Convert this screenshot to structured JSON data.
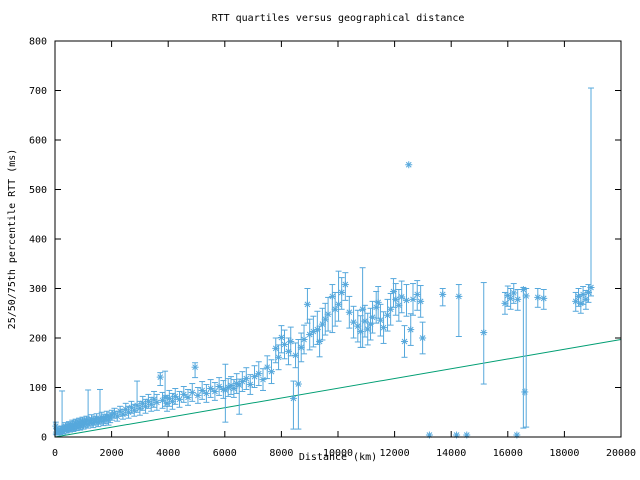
{
  "chart_data": {
    "type": "scatter",
    "title": "RTT quartiles versus geographical distance",
    "xlabel": "Distance (km)",
    "ylabel": "25/50/75th percentile RTT (ms)",
    "xlim": [
      0,
      20000
    ],
    "ylim": [
      0,
      800
    ],
    "x_ticks": [
      0,
      2000,
      4000,
      6000,
      8000,
      10000,
      12000,
      14000,
      16000,
      18000,
      20000
    ],
    "y_ticks": [
      0,
      100,
      200,
      300,
      400,
      500,
      600,
      700,
      800
    ],
    "grid": false,
    "legend": false,
    "colors": {
      "points": "#56a8dc",
      "reference_line": "#009e73",
      "axis": "#000000",
      "background": "#ffffff"
    },
    "series": [
      {
        "name": "rtt-quartiles",
        "style": "yerrorbars",
        "marker": "asterisk",
        "color": "#56a8dc",
        "points_format": [
          "distance_km",
          "median_ms",
          "q25_ms",
          "q75_ms"
        ],
        "points": [
          [
            30,
            22,
            6,
            30
          ],
          [
            60,
            10,
            4,
            16
          ],
          [
            100,
            13,
            7,
            18
          ],
          [
            140,
            16,
            10,
            22
          ],
          [
            180,
            9,
            5,
            14
          ],
          [
            220,
            15,
            9,
            21
          ],
          [
            250,
            18,
            8,
            93
          ],
          [
            290,
            12,
            6,
            18
          ],
          [
            330,
            17,
            11,
            24
          ],
          [
            370,
            22,
            14,
            29
          ],
          [
            410,
            14,
            8,
            20
          ],
          [
            450,
            19,
            12,
            26
          ],
          [
            490,
            24,
            16,
            31
          ],
          [
            530,
            16,
            10,
            23
          ],
          [
            570,
            21,
            13,
            28
          ],
          [
            610,
            26,
            18,
            34
          ],
          [
            650,
            18,
            11,
            25
          ],
          [
            690,
            23,
            15,
            31
          ],
          [
            730,
            28,
            20,
            36
          ],
          [
            770,
            20,
            13,
            27
          ],
          [
            810,
            25,
            17,
            33
          ],
          [
            850,
            30,
            22,
            38
          ],
          [
            890,
            22,
            14,
            30
          ],
          [
            930,
            27,
            19,
            35
          ],
          [
            970,
            32,
            24,
            40
          ],
          [
            1010,
            24,
            16,
            32
          ],
          [
            1060,
            29,
            20,
            37
          ],
          [
            1110,
            34,
            25,
            42
          ],
          [
            1170,
            26,
            18,
            95
          ],
          [
            1230,
            31,
            22,
            39
          ],
          [
            1290,
            36,
            27,
            45
          ],
          [
            1350,
            28,
            19,
            37
          ],
          [
            1410,
            33,
            24,
            42
          ],
          [
            1470,
            38,
            29,
            47
          ],
          [
            1530,
            30,
            21,
            39
          ],
          [
            1590,
            35,
            26,
            96
          ],
          [
            1650,
            40,
            30,
            50
          ],
          [
            1710,
            32,
            23,
            41
          ],
          [
            1770,
            37,
            27,
            46
          ],
          [
            1830,
            42,
            32,
            52
          ],
          [
            1890,
            34,
            24,
            44
          ],
          [
            1950,
            39,
            29,
            49
          ],
          [
            2010,
            44,
            34,
            54
          ],
          [
            2100,
            48,
            38,
            58
          ],
          [
            2200,
            42,
            32,
            52
          ],
          [
            2300,
            52,
            42,
            62
          ],
          [
            2400,
            46,
            36,
            56
          ],
          [
            2500,
            56,
            44,
            68
          ],
          [
            2600,
            50,
            38,
            62
          ],
          [
            2700,
            60,
            48,
            72
          ],
          [
            2800,
            54,
            42,
            66
          ],
          [
            2900,
            64,
            50,
            113
          ],
          [
            3000,
            58,
            44,
            72
          ],
          [
            3100,
            68,
            54,
            82
          ],
          [
            3200,
            62,
            48,
            76
          ],
          [
            3300,
            72,
            58,
            86
          ],
          [
            3400,
            66,
            52,
            80
          ],
          [
            3500,
            76,
            60,
            92
          ],
          [
            3600,
            70,
            54,
            86
          ],
          [
            3720,
            121,
            104,
            130
          ],
          [
            3800,
            74,
            58,
            90
          ],
          [
            3890,
            80,
            62,
            133
          ],
          [
            3960,
            68,
            52,
            84
          ],
          [
            4040,
            78,
            62,
            94
          ],
          [
            4150,
            72,
            56,
            88
          ],
          [
            4250,
            82,
            66,
            98
          ],
          [
            4400,
            76,
            60,
            92
          ],
          [
            4550,
            86,
            70,
            102
          ],
          [
            4700,
            80,
            64,
            96
          ],
          [
            4850,
            90,
            72,
            108
          ],
          [
            4950,
            141,
            120,
            150
          ],
          [
            5050,
            84,
            68,
            100
          ],
          [
            5200,
            94,
            76,
            112
          ],
          [
            5350,
            88,
            70,
            106
          ],
          [
            5500,
            98,
            80,
            116
          ],
          [
            5650,
            92,
            74,
            110
          ],
          [
            5800,
            102,
            84,
            120
          ],
          [
            5950,
            96,
            78,
            114
          ],
          [
            6020,
            95,
            30,
            147
          ],
          [
            6120,
            100,
            82,
            118
          ],
          [
            6220,
            104,
            86,
            122
          ],
          [
            6320,
            98,
            80,
            116
          ],
          [
            6420,
            108,
            88,
            128
          ],
          [
            6510,
            105,
            46,
            117
          ],
          [
            6620,
            112,
            92,
            132
          ],
          [
            6760,
            118,
            96,
            140
          ],
          [
            6900,
            106,
            86,
            126
          ],
          [
            7050,
            122,
            100,
            144
          ],
          [
            7200,
            128,
            104,
            152
          ],
          [
            7350,
            116,
            94,
            138
          ],
          [
            7500,
            141,
            118,
            164
          ],
          [
            7650,
            132,
            108,
            156
          ],
          [
            7800,
            179,
            150,
            200
          ],
          [
            7900,
            161,
            136,
            186
          ],
          [
            8000,
            201,
            170,
            225
          ],
          [
            8110,
            187,
            158,
            216
          ],
          [
            8250,
            173,
            146,
            200
          ],
          [
            8330,
            193,
            164,
            222
          ],
          [
            8425,
            78,
            16,
            113
          ],
          [
            8500,
            165,
            140,
            190
          ],
          [
            8600,
            107,
            16,
            197
          ],
          [
            8700,
            181,
            152,
            210
          ],
          [
            8800,
            197,
            168,
            226
          ],
          [
            8920,
            268,
            230,
            300
          ],
          [
            9000,
            207,
            176,
            238
          ],
          [
            9130,
            213,
            182,
            244
          ],
          [
            9270,
            217,
            187,
            254
          ],
          [
            9350,
            193,
            162,
            224
          ],
          [
            9450,
            228,
            196,
            260
          ],
          [
            9550,
            238,
            206,
            270
          ],
          [
            9650,
            248,
            214,
            282
          ],
          [
            9800,
            284,
            211,
            308
          ],
          [
            9900,
            258,
            224,
            292
          ],
          [
            10020,
            268,
            234,
            335
          ],
          [
            10130,
            292,
            258,
            322
          ],
          [
            10260,
            308,
            276,
            332
          ],
          [
            10400,
            252,
            220,
            284
          ],
          [
            10550,
            232,
            200,
            264
          ],
          [
            10700,
            224,
            192,
            256
          ],
          [
            10800,
            213,
            181,
            245
          ],
          [
            10870,
            258,
            181,
            342
          ],
          [
            10950,
            234,
            202,
            266
          ],
          [
            11050,
            218,
            186,
            250
          ],
          [
            11150,
            228,
            196,
            260
          ],
          [
            11220,
            242,
            210,
            274
          ],
          [
            11350,
            262,
            230,
            294
          ],
          [
            11420,
            272,
            240,
            304
          ],
          [
            11500,
            236,
            204,
            268
          ],
          [
            11610,
            221,
            189,
            253
          ],
          [
            11750,
            246,
            214,
            278
          ],
          [
            11860,
            258,
            226,
            290
          ],
          [
            11960,
            294,
            262,
            320
          ],
          [
            12040,
            278,
            246,
            310
          ],
          [
            12150,
            266,
            234,
            298
          ],
          [
            12250,
            283,
            251,
            315
          ],
          [
            12350,
            193,
            161,
            225
          ],
          [
            12420,
            276,
            244,
            308
          ],
          [
            12500,
            550,
            550,
            550
          ],
          [
            12570,
            217,
            185,
            249
          ],
          [
            12650,
            278,
            246,
            310
          ],
          [
            12800,
            288,
            256,
            316
          ],
          [
            12920,
            274,
            242,
            306
          ],
          [
            12990,
            200,
            168,
            232
          ],
          [
            13230,
            4,
            4,
            4
          ],
          [
            13700,
            288,
            265,
            300
          ],
          [
            14190,
            4,
            4,
            4
          ],
          [
            14270,
            284,
            203,
            308
          ],
          [
            14550,
            4,
            4,
            4
          ],
          [
            15150,
            211,
            107,
            312
          ],
          [
            15900,
            270,
            248,
            292
          ],
          [
            16000,
            286,
            264,
            305
          ],
          [
            16100,
            280,
            258,
            300
          ],
          [
            16210,
            291,
            270,
            310
          ],
          [
            16320,
            4,
            4,
            4
          ],
          [
            16350,
            278,
            256,
            298
          ],
          [
            16550,
            298,
            18,
            302
          ],
          [
            16600,
            91,
            91,
            91
          ],
          [
            16650,
            285,
            20,
            300
          ],
          [
            17060,
            282,
            262,
            300
          ],
          [
            17270,
            280,
            258,
            298
          ],
          [
            18400,
            274,
            254,
            292
          ],
          [
            18500,
            284,
            264,
            300
          ],
          [
            18580,
            270,
            250,
            288
          ],
          [
            18660,
            288,
            268,
            304
          ],
          [
            18760,
            278,
            258,
            296
          ],
          [
            18850,
            292,
            272,
            308
          ],
          [
            18940,
            302,
            285,
            705
          ]
        ]
      },
      {
        "name": "reference-line",
        "style": "line",
        "color": "#009e73",
        "points": [
          [
            0,
            0
          ],
          [
            20000,
            197
          ]
        ]
      }
    ]
  }
}
